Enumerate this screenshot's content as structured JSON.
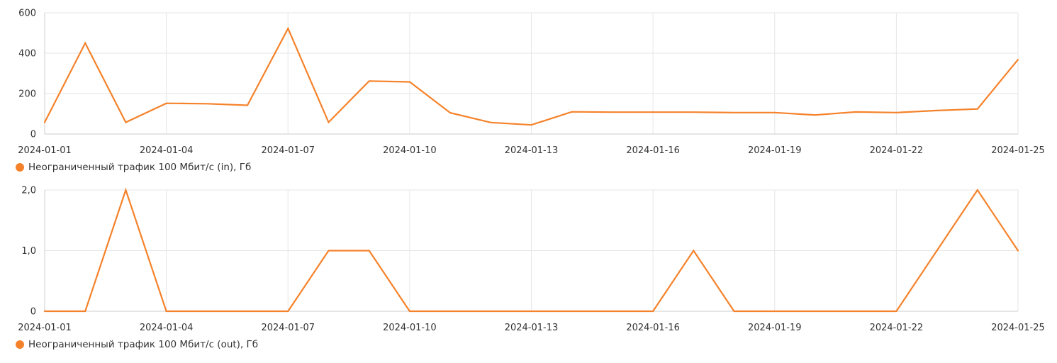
{
  "colors": {
    "series": "#f5822a",
    "grid": "#e6e6e6",
    "axis": "#cccccc",
    "text": "#333333"
  },
  "chart_data": [
    {
      "type": "line",
      "legend": "Неограниченный трафик 100 Мбит/с (in), Гб",
      "legend_position": "bottom-left",
      "grid": true,
      "x": [
        "2024-01-01",
        "2024-01-02",
        "2024-01-03",
        "2024-01-04",
        "2024-01-05",
        "2024-01-06",
        "2024-01-07",
        "2024-01-08",
        "2024-01-09",
        "2024-01-10",
        "2024-01-11",
        "2024-01-12",
        "2024-01-13",
        "2024-01-14",
        "2024-01-15",
        "2024-01-16",
        "2024-01-17",
        "2024-01-18",
        "2024-01-19",
        "2024-01-20",
        "2024-01-21",
        "2024-01-22",
        "2024-01-23",
        "2024-01-24",
        "2024-01-25"
      ],
      "values": [
        58,
        450,
        58,
        152,
        150,
        142,
        522,
        58,
        262,
        258,
        105,
        57,
        45,
        110,
        108,
        108,
        108,
        106,
        106,
        94,
        109,
        106,
        116,
        124,
        368
      ],
      "ylim": [
        0,
        600
      ],
      "yticks": [
        0,
        200,
        400,
        600
      ],
      "ytick_labels": [
        "0",
        "200",
        "400",
        "600"
      ],
      "xtick_labels": [
        "2024-01-01",
        "2024-01-04",
        "2024-01-07",
        "2024-01-10",
        "2024-01-13",
        "2024-01-16",
        "2024-01-19",
        "2024-01-22",
        "2024-01-25"
      ]
    },
    {
      "type": "line",
      "legend": "Неограниченный трафик 100 Мбит/с (out), Гб",
      "legend_position": "bottom-left",
      "grid": true,
      "x": [
        "2024-01-01",
        "2024-01-02",
        "2024-01-03",
        "2024-01-04",
        "2024-01-05",
        "2024-01-06",
        "2024-01-07",
        "2024-01-08",
        "2024-01-09",
        "2024-01-10",
        "2024-01-11",
        "2024-01-12",
        "2024-01-13",
        "2024-01-14",
        "2024-01-15",
        "2024-01-16",
        "2024-01-17",
        "2024-01-18",
        "2024-01-19",
        "2024-01-20",
        "2024-01-21",
        "2024-01-22",
        "2024-01-23",
        "2024-01-24",
        "2024-01-25"
      ],
      "values": [
        0,
        0,
        2,
        0,
        0,
        0,
        0,
        1,
        1,
        0,
        0,
        0,
        0,
        0,
        0,
        0,
        1,
        0,
        0,
        0,
        0,
        0,
        1,
        2,
        1
      ],
      "ylim": [
        0,
        2
      ],
      "yticks": [
        0,
        1,
        2
      ],
      "ytick_labels": [
        "0",
        "1,0",
        "2,0"
      ],
      "xtick_labels": [
        "2024-01-01",
        "2024-01-04",
        "2024-01-07",
        "2024-01-10",
        "2024-01-13",
        "2024-01-16",
        "2024-01-19",
        "2024-01-22",
        "2024-01-25"
      ]
    }
  ]
}
